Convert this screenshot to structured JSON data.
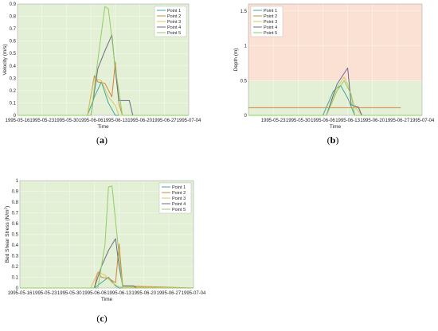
{
  "chart_data": [
    {
      "id": "a",
      "type": "line",
      "caption": "(a)",
      "xlabel": "Time",
      "ylabel": "Velocity (m/s)",
      "x_ticks": [
        "1995-05-16",
        "1995-05-23",
        "1995-05-30",
        "1995-06-06",
        "1995-06-13",
        "1995-06-20",
        "1995-06-27",
        "1995-07-04"
      ],
      "xlim": [
        "1995-05-16",
        "1995-07-04"
      ],
      "ylim": [
        0,
        0.9
      ],
      "y_ticks": [
        "0",
        "0.1",
        "0.2",
        "0.3",
        "0.4",
        "0.5",
        "0.6",
        "0.7",
        "0.8",
        "0.9"
      ],
      "y_tick_values": [
        0,
        0.1,
        0.2,
        0.3,
        0.4,
        0.5,
        0.6,
        0.7,
        0.8,
        0.9
      ],
      "background": [
        {
          "from": 0,
          "to": 0.9,
          "color": "#e3f0d6"
        }
      ],
      "legend_position": "top-right",
      "series": [
        {
          "name": "Point 1",
          "color": "#3fa79a",
          "x": [
            "1995-05-16",
            "1995-06-05",
            "1995-06-07",
            "1995-06-09",
            "1995-06-11",
            "1995-06-13",
            "1995-06-14",
            "1995-07-04"
          ],
          "y": [
            0,
            0,
            0.15,
            0.27,
            0.1,
            0,
            0,
            0
          ]
        },
        {
          "name": "Point 2",
          "color": "#d0843a",
          "x": [
            "1995-05-16",
            "1995-06-05",
            "1995-06-07",
            "1995-06-08",
            "1995-06-10",
            "1995-06-12",
            "1995-06-13",
            "1995-06-14",
            "1995-06-15",
            "1995-07-04"
          ],
          "y": [
            0,
            0,
            0.32,
            0.27,
            0.26,
            0.15,
            0.43,
            0.1,
            0,
            0
          ]
        },
        {
          "name": "Point 3",
          "color": "#d7c766",
          "x": [
            "1995-05-16",
            "1995-06-05",
            "1995-06-07",
            "1995-06-09",
            "1995-06-11",
            "1995-06-13",
            "1995-06-14",
            "1995-07-04"
          ],
          "y": [
            0,
            0,
            0.3,
            0.28,
            0.15,
            0.08,
            0,
            0
          ]
        },
        {
          "name": "Point 4",
          "color": "#6f6888",
          "x": [
            "1995-05-16",
            "1995-06-06",
            "1995-06-08",
            "1995-06-10",
            "1995-06-12",
            "1995-06-13",
            "1995-06-14",
            "1995-06-17",
            "1995-06-18",
            "1995-07-04"
          ],
          "y": [
            0,
            0,
            0.38,
            0.52,
            0.65,
            0.36,
            0.12,
            0.12,
            0,
            0
          ]
        },
        {
          "name": "Point 5",
          "color": "#8fce63",
          "x": [
            "1995-05-16",
            "1995-06-06",
            "1995-06-08",
            "1995-06-10",
            "1995-06-11",
            "1995-06-13",
            "1995-06-14",
            "1995-06-15",
            "1995-07-04"
          ],
          "y": [
            0,
            0,
            0.45,
            0.88,
            0.86,
            0.38,
            0.2,
            0,
            0
          ]
        }
      ]
    },
    {
      "id": "b",
      "type": "line",
      "caption": "(b)",
      "xlabel": "Time",
      "ylabel": "Depth (m)",
      "x_ticks": [
        "1995-05-23",
        "1995-05-30",
        "1995-06-06",
        "1995-06-13",
        "1995-06-20",
        "1995-06-27",
        "1995-07-04"
      ],
      "xlim": [
        "1995-05-16",
        "1995-07-04"
      ],
      "ylim": [
        0,
        1.6
      ],
      "y_ticks": [
        "0",
        "0.5",
        "1",
        "1.5"
      ],
      "y_tick_values": [
        0,
        0.5,
        1,
        1.5
      ],
      "background": [
        {
          "from": 0,
          "to": 0.5,
          "color": "#e3f0d6"
        },
        {
          "from": 0.5,
          "to": 1.6,
          "color": "#fbe1d3"
        }
      ],
      "legend_position": "top-left",
      "series": [
        {
          "name": "Point 1",
          "color": "#3fa79a",
          "x": [
            "1995-05-16",
            "1995-06-06",
            "1995-06-09",
            "1995-06-11",
            "1995-06-13",
            "1995-06-15",
            "1995-07-04"
          ],
          "y": [
            0,
            0,
            0.35,
            0.43,
            0.25,
            0,
            0
          ]
        },
        {
          "name": "Point 2",
          "color": "#d0843a",
          "x": [
            "1995-05-16",
            "1995-06-27",
            "1995-06-28"
          ],
          "y": [
            0.11,
            0.11,
            0.11
          ]
        },
        {
          "name": "Point 3",
          "color": "#d7c766",
          "x": [
            "1995-05-16",
            "1995-06-07",
            "1995-06-10",
            "1995-06-12",
            "1995-06-13",
            "1995-06-15",
            "1995-06-17",
            "1995-07-04"
          ],
          "y": [
            0,
            0,
            0.4,
            0.55,
            0.45,
            0.12,
            0,
            0
          ]
        },
        {
          "name": "Point 4",
          "color": "#6f6888",
          "x": [
            "1995-05-16",
            "1995-06-07",
            "1995-06-10",
            "1995-06-13",
            "1995-06-14",
            "1995-06-16",
            "1995-06-17",
            "1995-07-04"
          ],
          "y": [
            0,
            0,
            0.45,
            0.68,
            0.15,
            0.12,
            0,
            0
          ]
        },
        {
          "name": "Point 5",
          "color": "#8fce63",
          "x": [
            "1995-05-16",
            "1995-06-07",
            "1995-06-10",
            "1995-06-12",
            "1995-06-14",
            "1995-06-15",
            "1995-07-04"
          ],
          "y": [
            0,
            0,
            0.35,
            0.5,
            0.3,
            0,
            0
          ]
        }
      ]
    },
    {
      "id": "c",
      "type": "line",
      "caption": "(c)",
      "xlabel": "Time",
      "ylabel": "Bed Shear Stress (N/m",
      "ylabel_sup": "2",
      "ylabel_end": ")",
      "x_ticks": [
        "1995-05-16",
        "1995-05-23",
        "1995-05-30",
        "1995-06-06",
        "1995-06-13",
        "1995-06-20",
        "1995-06-27",
        "1995-07-04"
      ],
      "xlim": [
        "1995-05-16",
        "1995-07-04"
      ],
      "ylim": [
        0,
        1.0
      ],
      "y_ticks": [
        "0",
        "0.1",
        "0.2",
        "0.3",
        "0.4",
        "0.5",
        "0.6",
        "0.7",
        "0.8",
        "0.9",
        "1"
      ],
      "y_tick_values": [
        0,
        0.1,
        0.2,
        0.3,
        0.4,
        0.5,
        0.6,
        0.7,
        0.8,
        0.9,
        1.0
      ],
      "background": [
        {
          "from": 0,
          "to": 1.0,
          "color": "#e3f0d6"
        }
      ],
      "legend_position": "top-right",
      "series": [
        {
          "name": "Point 1",
          "color": "#3fa79a",
          "x": [
            "1995-05-16",
            "1995-06-06",
            "1995-06-08",
            "1995-06-10",
            "1995-06-12",
            "1995-06-13",
            "1995-07-04"
          ],
          "y": [
            0,
            0,
            0.05,
            0.1,
            0.02,
            0,
            0
          ]
        },
        {
          "name": "Point 2",
          "color": "#d0843a",
          "x": [
            "1995-05-16",
            "1995-06-06",
            "1995-06-07",
            "1995-06-08",
            "1995-06-10",
            "1995-06-12",
            "1995-06-13",
            "1995-06-14",
            "1995-07-04"
          ],
          "y": [
            0,
            0,
            0.15,
            0.1,
            0.09,
            0.05,
            0.41,
            0.02,
            0
          ]
        },
        {
          "name": "Point 3",
          "color": "#d7c766",
          "x": [
            "1995-05-16",
            "1995-06-05",
            "1995-06-07",
            "1995-06-09",
            "1995-06-11",
            "1995-06-13",
            "1995-07-04"
          ],
          "y": [
            0,
            0,
            0.15,
            0.12,
            0.05,
            0.01,
            0
          ]
        },
        {
          "name": "Point 4",
          "color": "#6f6888",
          "x": [
            "1995-05-16",
            "1995-06-06",
            "1995-06-08",
            "1995-06-10",
            "1995-06-12",
            "1995-06-13",
            "1995-06-14",
            "1995-06-17",
            "1995-06-18",
            "1995-07-04"
          ],
          "y": [
            0,
            0,
            0.2,
            0.35,
            0.46,
            0.2,
            0.02,
            0.02,
            0,
            0
          ]
        },
        {
          "name": "Point 5",
          "color": "#8fce63",
          "x": [
            "1995-05-16",
            "1995-06-07",
            "1995-06-09",
            "1995-06-10",
            "1995-06-11",
            "1995-06-13",
            "1995-06-14",
            "1995-07-04"
          ],
          "y": [
            0,
            0,
            0.4,
            0.94,
            0.95,
            0.3,
            0,
            0
          ]
        }
      ]
    }
  ]
}
